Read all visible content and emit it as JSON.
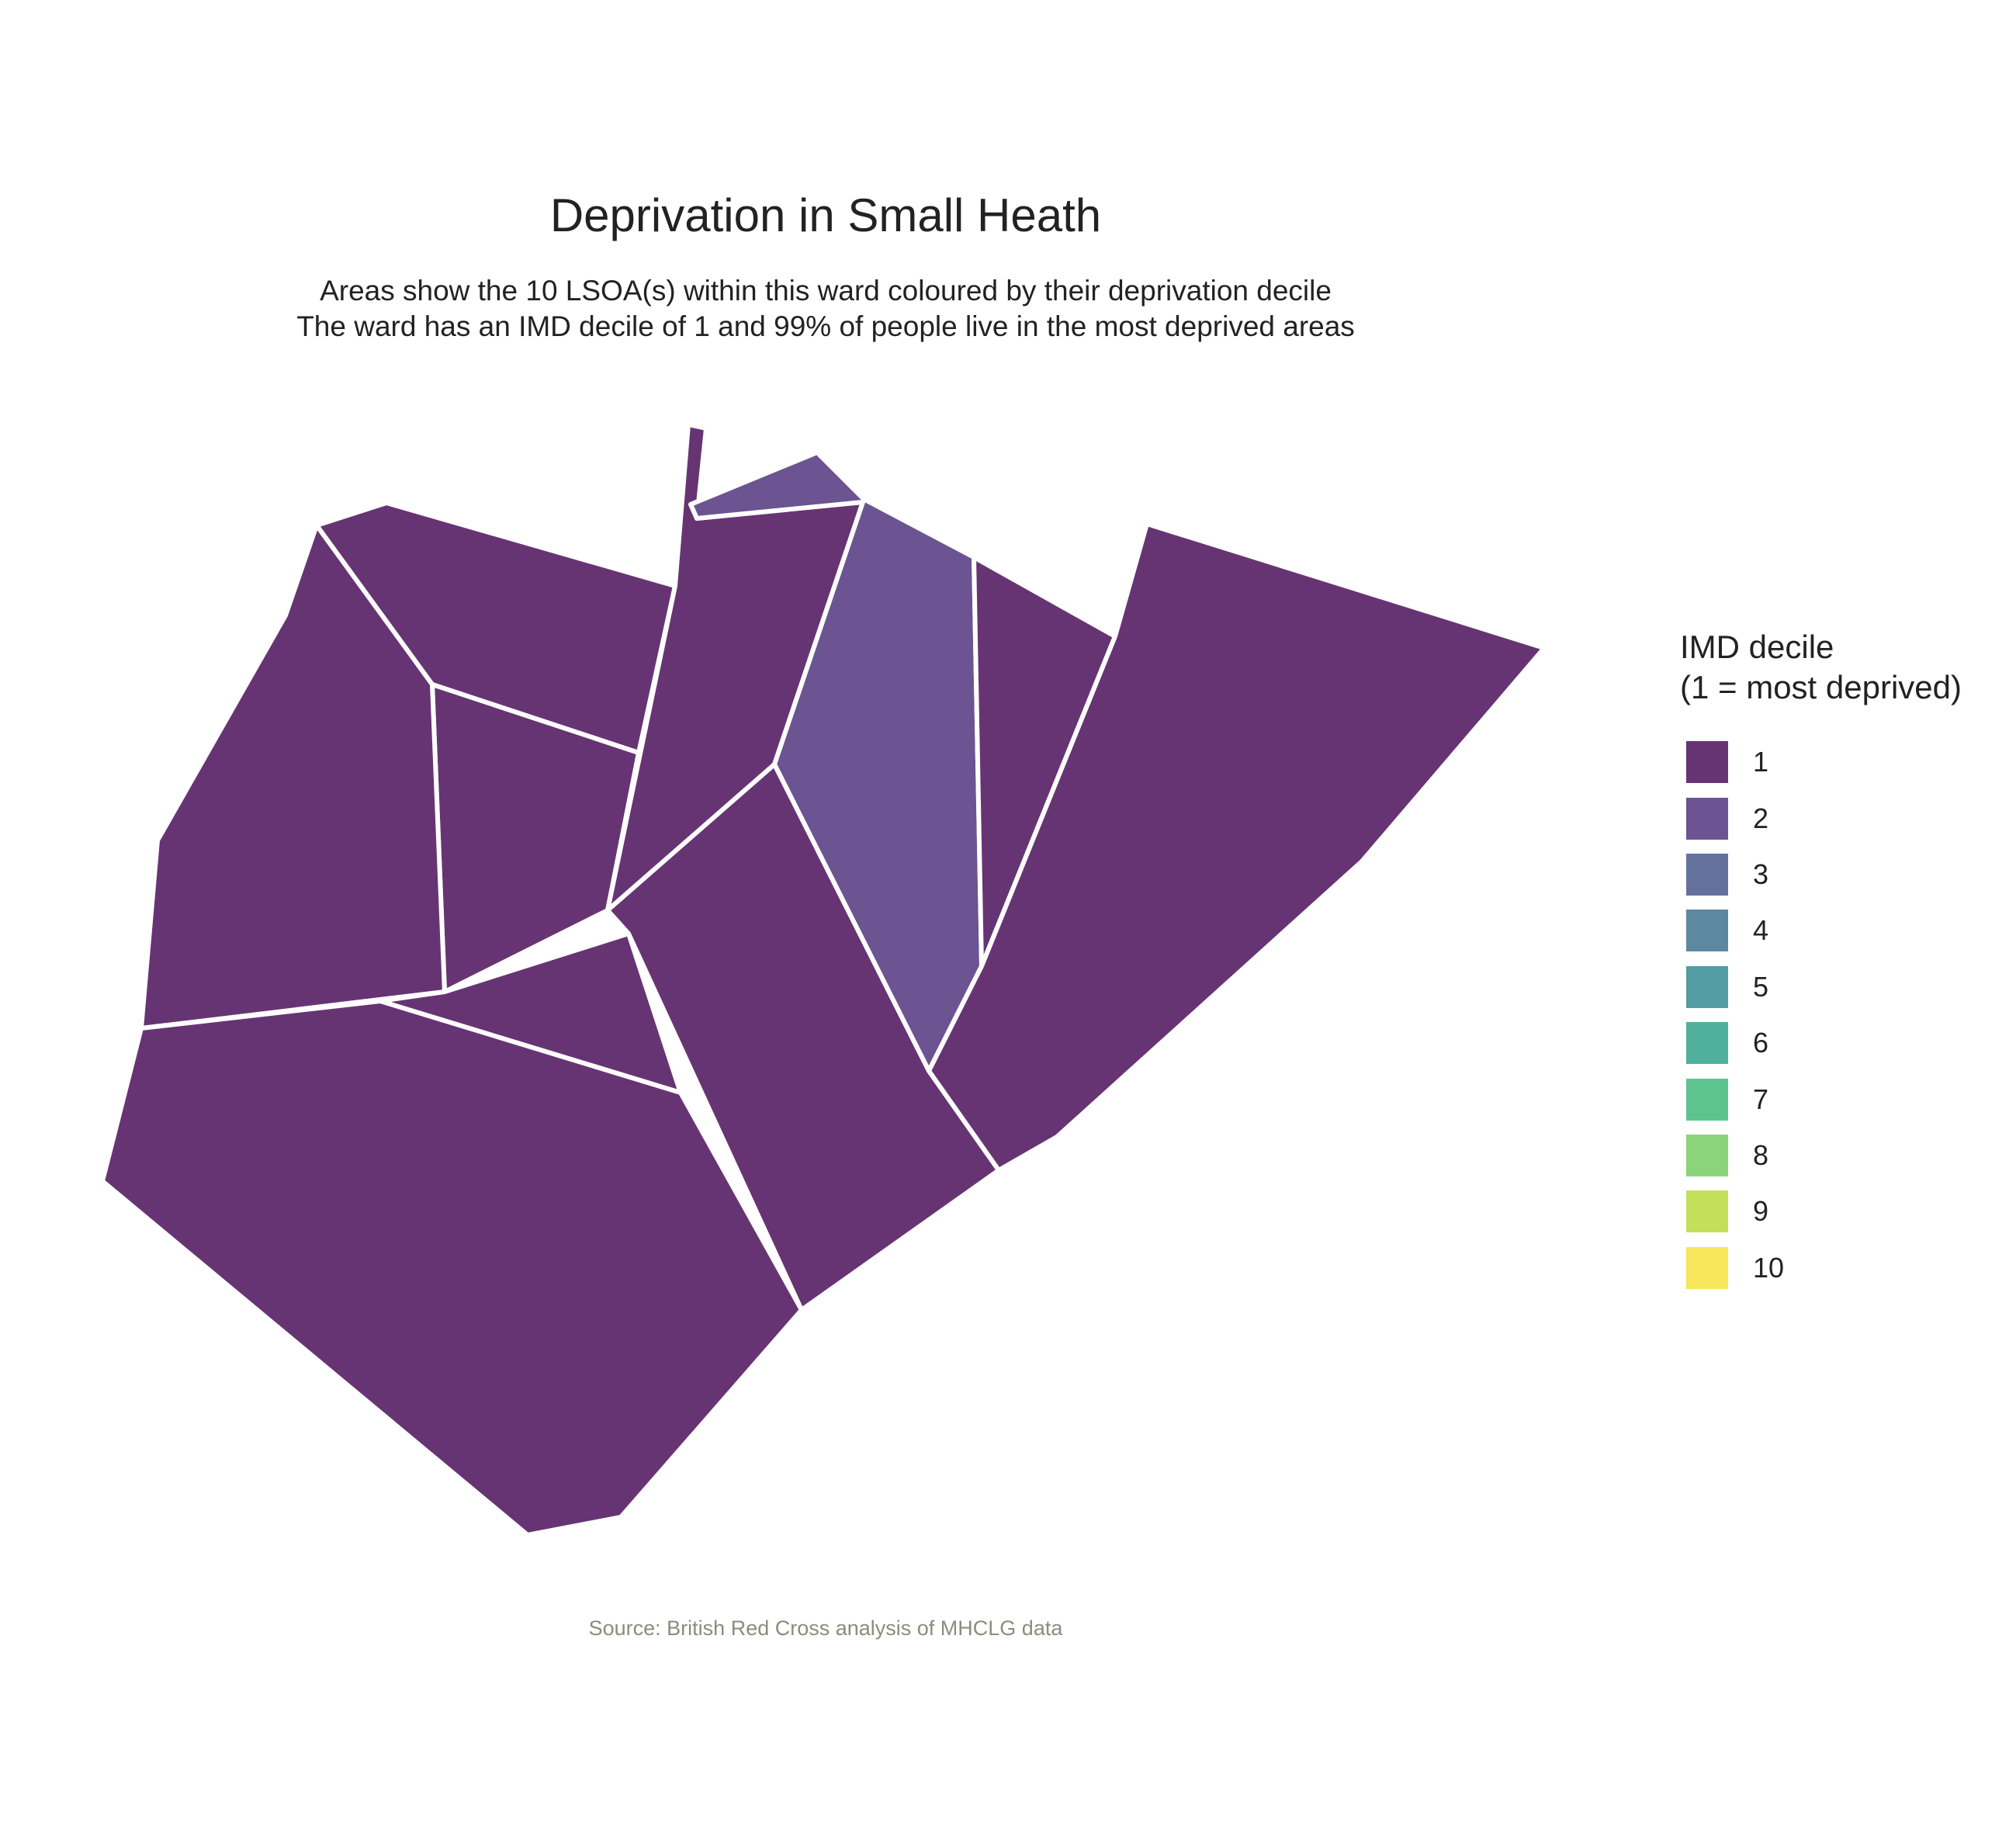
{
  "title": "Deprivation in Small Heath",
  "subtitle": {
    "line1": "Areas show the 10 LSOA(s) within this ward coloured by their deprivation decile",
    "line2": "The ward has an IMD decile of 1 and 99% of people live in the most deprived areas"
  },
  "legend": {
    "title_line1": "IMD decile",
    "title_line2": "(1 = most deprived)",
    "items": [
      {
        "label": "1",
        "color": "#673473"
      },
      {
        "label": "2",
        "color": "#6b5491"
      },
      {
        "label": "3",
        "color": "#65719d"
      },
      {
        "label": "4",
        "color": "#5c89a0"
      },
      {
        "label": "5",
        "color": "#529ca4"
      },
      {
        "label": "6",
        "color": "#4fb19c"
      },
      {
        "label": "7",
        "color": "#5ec48f"
      },
      {
        "label": "8",
        "color": "#8cd479"
      },
      {
        "label": "9",
        "color": "#c4df59"
      },
      {
        "label": "10",
        "color": "#f6e65a"
      }
    ]
  },
  "caption": "Source: British Red Cross analysis of MHCLG data",
  "map_data": {
    "boundary_color": "#ffffff",
    "areas": [
      {
        "id": "lsoa-1",
        "decile": 1
      },
      {
        "id": "lsoa-2",
        "decile": 1
      },
      {
        "id": "lsoa-3",
        "decile": 1
      },
      {
        "id": "lsoa-4",
        "decile": 1
      },
      {
        "id": "lsoa-5",
        "decile": 2
      },
      {
        "id": "lsoa-6",
        "decile": 1
      },
      {
        "id": "lsoa-7",
        "decile": 1
      },
      {
        "id": "lsoa-8",
        "decile": 1
      },
      {
        "id": "lsoa-9",
        "decile": 1
      },
      {
        "id": "lsoa-10",
        "decile": 1
      }
    ]
  }
}
